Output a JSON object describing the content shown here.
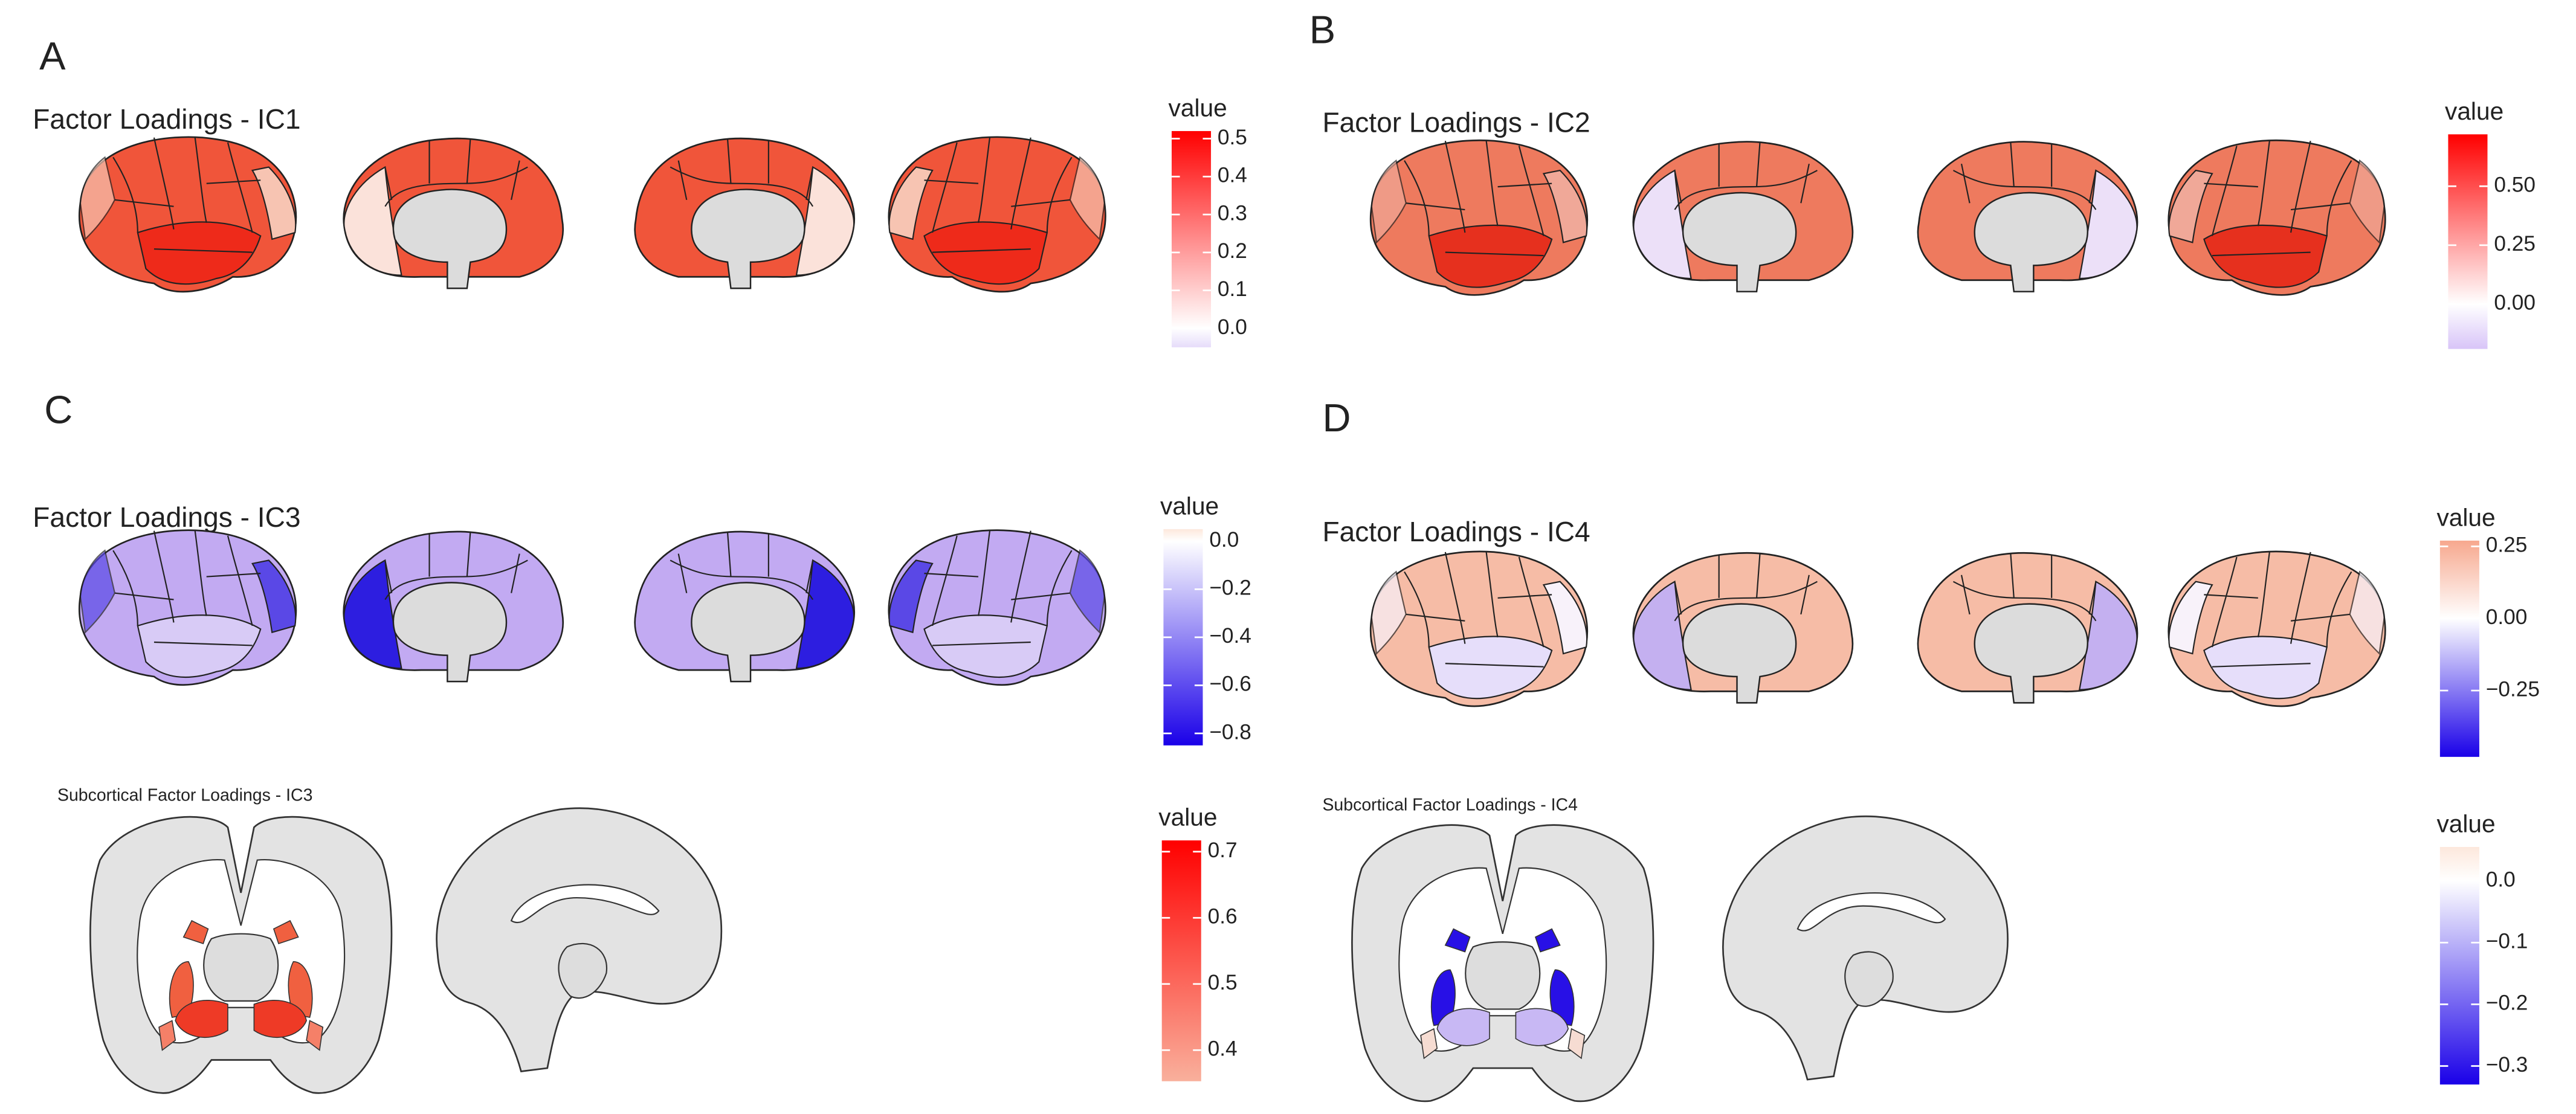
{
  "panels": [
    {
      "label": "A",
      "title": "Factor Loadings - IC1",
      "legend": {
        "title": "value",
        "lim": [
          -0.05,
          0.52
        ],
        "colors": [
          "#e6dcfa",
          "#ffffff",
          "#ff0000"
        ],
        "ticks": [
          {
            "value": 0,
            "label": "0.0"
          },
          0.1,
          0.2,
          0.3,
          0.4,
          0.5
        ]
      }
    },
    {
      "label": "B",
      "title": "Factor Loadings - IC2",
      "legend": {
        "title": "value",
        "lim": [
          -0.19,
          0.72
        ],
        "colors": [
          "#d8c4f8",
          "#ffffff",
          "#ff0000"
        ],
        "ticks": [
          {
            "value": 0,
            "label": "0.00"
          },
          0.25,
          {
            "value": 0.5,
            "label": "0.50"
          }
        ]
      }
    },
    {
      "label": "C",
      "title": "Factor Loadings - IC3",
      "legend": {
        "title": "value",
        "lim": [
          -0.85,
          0.05
        ],
        "colors": [
          "#1a00e8",
          "#ffffff",
          "#fde8dc"
        ],
        "ticks": [
          {
            "value": -0.8,
            "label": "−0.8"
          },
          {
            "value": -0.6,
            "label": "−0.6"
          },
          {
            "value": -0.4,
            "label": "−0.4"
          },
          {
            "value": -0.2,
            "label": "−0.2"
          },
          {
            "value": 0,
            "label": "0.0"
          }
        ]
      }
    },
    {
      "label": "D",
      "title": "Factor Loadings - IC4",
      "legend": {
        "title": "value",
        "lim": [
          -0.48,
          0.27
        ],
        "colors": [
          "#1a00e8",
          "#ffffff",
          "#f7a88e"
        ],
        "ticks": [
          {
            "value": -0.25,
            "label": "−0.25"
          },
          {
            "value": 0,
            "label": "0.00"
          },
          0.25
        ]
      }
    }
  ],
  "subcortical": [
    {
      "title": "Subcortical Factor Loadings - IC3",
      "legend": {
        "title": "value",
        "lim": [
          0.353,
          0.717
        ],
        "colors": [
          "#f9b09c",
          "#ff0000"
        ],
        "ticks": [
          0.4,
          0.5,
          0.6,
          0.7
        ]
      }
    },
    {
      "title": "Subcortical Factor Loadings - IC4",
      "legend": {
        "title": "value",
        "lim": [
          -0.33,
          0.055
        ],
        "colors": [
          "#1a00e8",
          "#ffffff",
          "#fde8dc"
        ],
        "ticks": [
          {
            "value": -0.3,
            "label": "−0.3"
          },
          {
            "value": -0.2,
            "label": "−0.2"
          },
          {
            "value": -0.1,
            "label": "−0.1"
          },
          {
            "value": 0,
            "label": "0.0"
          }
        ]
      }
    }
  ]
}
